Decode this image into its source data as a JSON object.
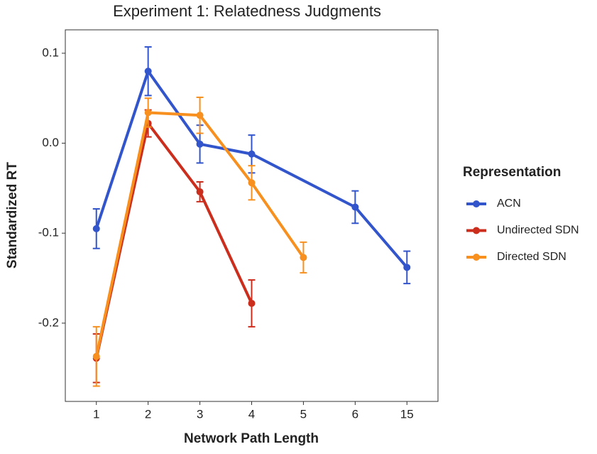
{
  "chart_data": {
    "type": "line",
    "title": "Experiment 1: Relatedness Judgments",
    "x_label": "Network Path Length",
    "y_label": "Standardized RT",
    "categories": [
      "1",
      "2",
      "3",
      "4",
      "5",
      "6",
      "15"
    ],
    "ylim": [
      -0.287,
      0.126
    ],
    "yticks": [
      -0.2,
      -0.1,
      {
        "value": 0,
        "label": "0.0"
      },
      0.1
    ],
    "legend_title": "Representation",
    "legend_position": "right",
    "grid": false,
    "series": [
      {
        "name": "ACN",
        "color": "#3355cc",
        "x": [
          "1",
          "2",
          "3",
          "4",
          "6",
          "15"
        ],
        "values": [
          -0.095,
          0.08,
          -0.001,
          -0.012,
          -0.071,
          -0.138
        ],
        "errors": [
          0.022,
          0.027,
          0.021,
          0.021,
          0.018,
          0.018
        ]
      },
      {
        "name": "Undirected SDN",
        "color": "#cc2e1e",
        "x": [
          "1",
          "2",
          "3",
          "4"
        ],
        "values": [
          -0.239,
          0.022,
          -0.054,
          -0.178
        ],
        "errors": [
          0.027,
          0.015,
          0.011,
          0.026
        ]
      },
      {
        "name": "Directed SDN",
        "color": "#f7901e",
        "x": [
          "1",
          "2",
          "3",
          "4",
          "5"
        ],
        "values": [
          -0.237,
          0.034,
          0.031,
          -0.044,
          -0.127
        ],
        "errors": [
          0.033,
          0.016,
          0.02,
          0.019,
          0.017
        ]
      }
    ]
  }
}
